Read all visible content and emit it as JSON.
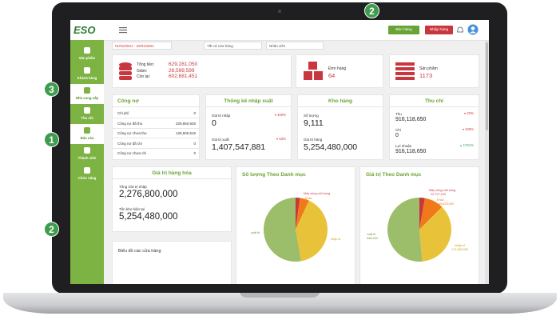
{
  "callouts": [
    "2",
    "3",
    "1",
    "2"
  ],
  "topbar": {
    "logo": "ESO",
    "buttons": [
      "Bán hàng",
      "Nhập hàng"
    ]
  },
  "sidebar": [
    "Sản phẩm",
    "Khách hàng",
    "Nhà cung cấp",
    "Thu chi",
    "Báo cáo",
    "Thành viên",
    "Chức năng"
  ],
  "filters": [
    "01/01/2021 - 22/01/2021",
    "Tất cả cửa hàng",
    "Nhân viên"
  ],
  "summary": {
    "totals": [
      {
        "label": "Tổng tiền:",
        "value": "629,281,050"
      },
      {
        "label": "Giảm:",
        "value": "26,599,599"
      },
      {
        "label": "Còn lại:",
        "value": "602,681,451"
      }
    ],
    "orders": {
      "label": "Đơn hàng",
      "value": "64"
    },
    "products": {
      "label": "Sản phẩm",
      "value": "1173"
    }
  },
  "debt": {
    "title": "Công nợ",
    "rows": [
      [
        "Chi phí",
        "0"
      ],
      [
        "Công nợ đã thu",
        "329,850,926"
      ],
      [
        "Công nợ chưa thu",
        "128,600,516"
      ],
      [
        "Công nợ đã chi",
        "0"
      ],
      [
        "Công nợ chưa chi",
        "0"
      ]
    ]
  },
  "io": {
    "title": "Thống kê nhập xuất",
    "items": [
      {
        "label": "Giá trị nhập",
        "change": "100%",
        "value": "0"
      },
      {
        "label": "Giá trị xuất",
        "change": "63%",
        "value": "1,407,547,881"
      }
    ]
  },
  "stock": {
    "title": "Kho hàng",
    "items": [
      {
        "label": "Số lượng",
        "value": "9,111"
      },
      {
        "label": "Giá trị hàng",
        "value": "5,254,480,000"
      }
    ]
  },
  "cash": {
    "title": "Thu chi",
    "items": [
      {
        "label": "Thu",
        "change": "23%",
        "value": "916,118,650"
      },
      {
        "label": "Chi",
        "change": "100%",
        "value": "0"
      },
      {
        "label": "Lợi nhuận",
        "change": "1751%",
        "value": "916,118,650"
      }
    ]
  },
  "goods": {
    "title": "Giá trị hàng hóa",
    "items": [
      {
        "label": "Tổng Giá trị nhập",
        "value": "2,276,800,000"
      },
      {
        "label": "Tồn kho hiện tại",
        "value": "5,254,480,000"
      }
    ]
  },
  "store_chart": {
    "title": "Biểu đồ các cửa hàng"
  },
  "qty_chart": {
    "title": "Số lượng Theo Danh mục",
    "labels": [
      "Máy xông mũi họng",
      "Khác",
      "xuất lẻ",
      "nhập sỉ"
    ]
  },
  "value_chart": {
    "title": "Giá trị Theo Danh mục",
    "labels": [
      "Máy xông mũi họng",
      "22,727,100",
      "Khác",
      "69,828,000",
      "xuất lẻ",
      "345,000",
      "Nhập sỉ",
      "170,380,000"
    ]
  }
}
